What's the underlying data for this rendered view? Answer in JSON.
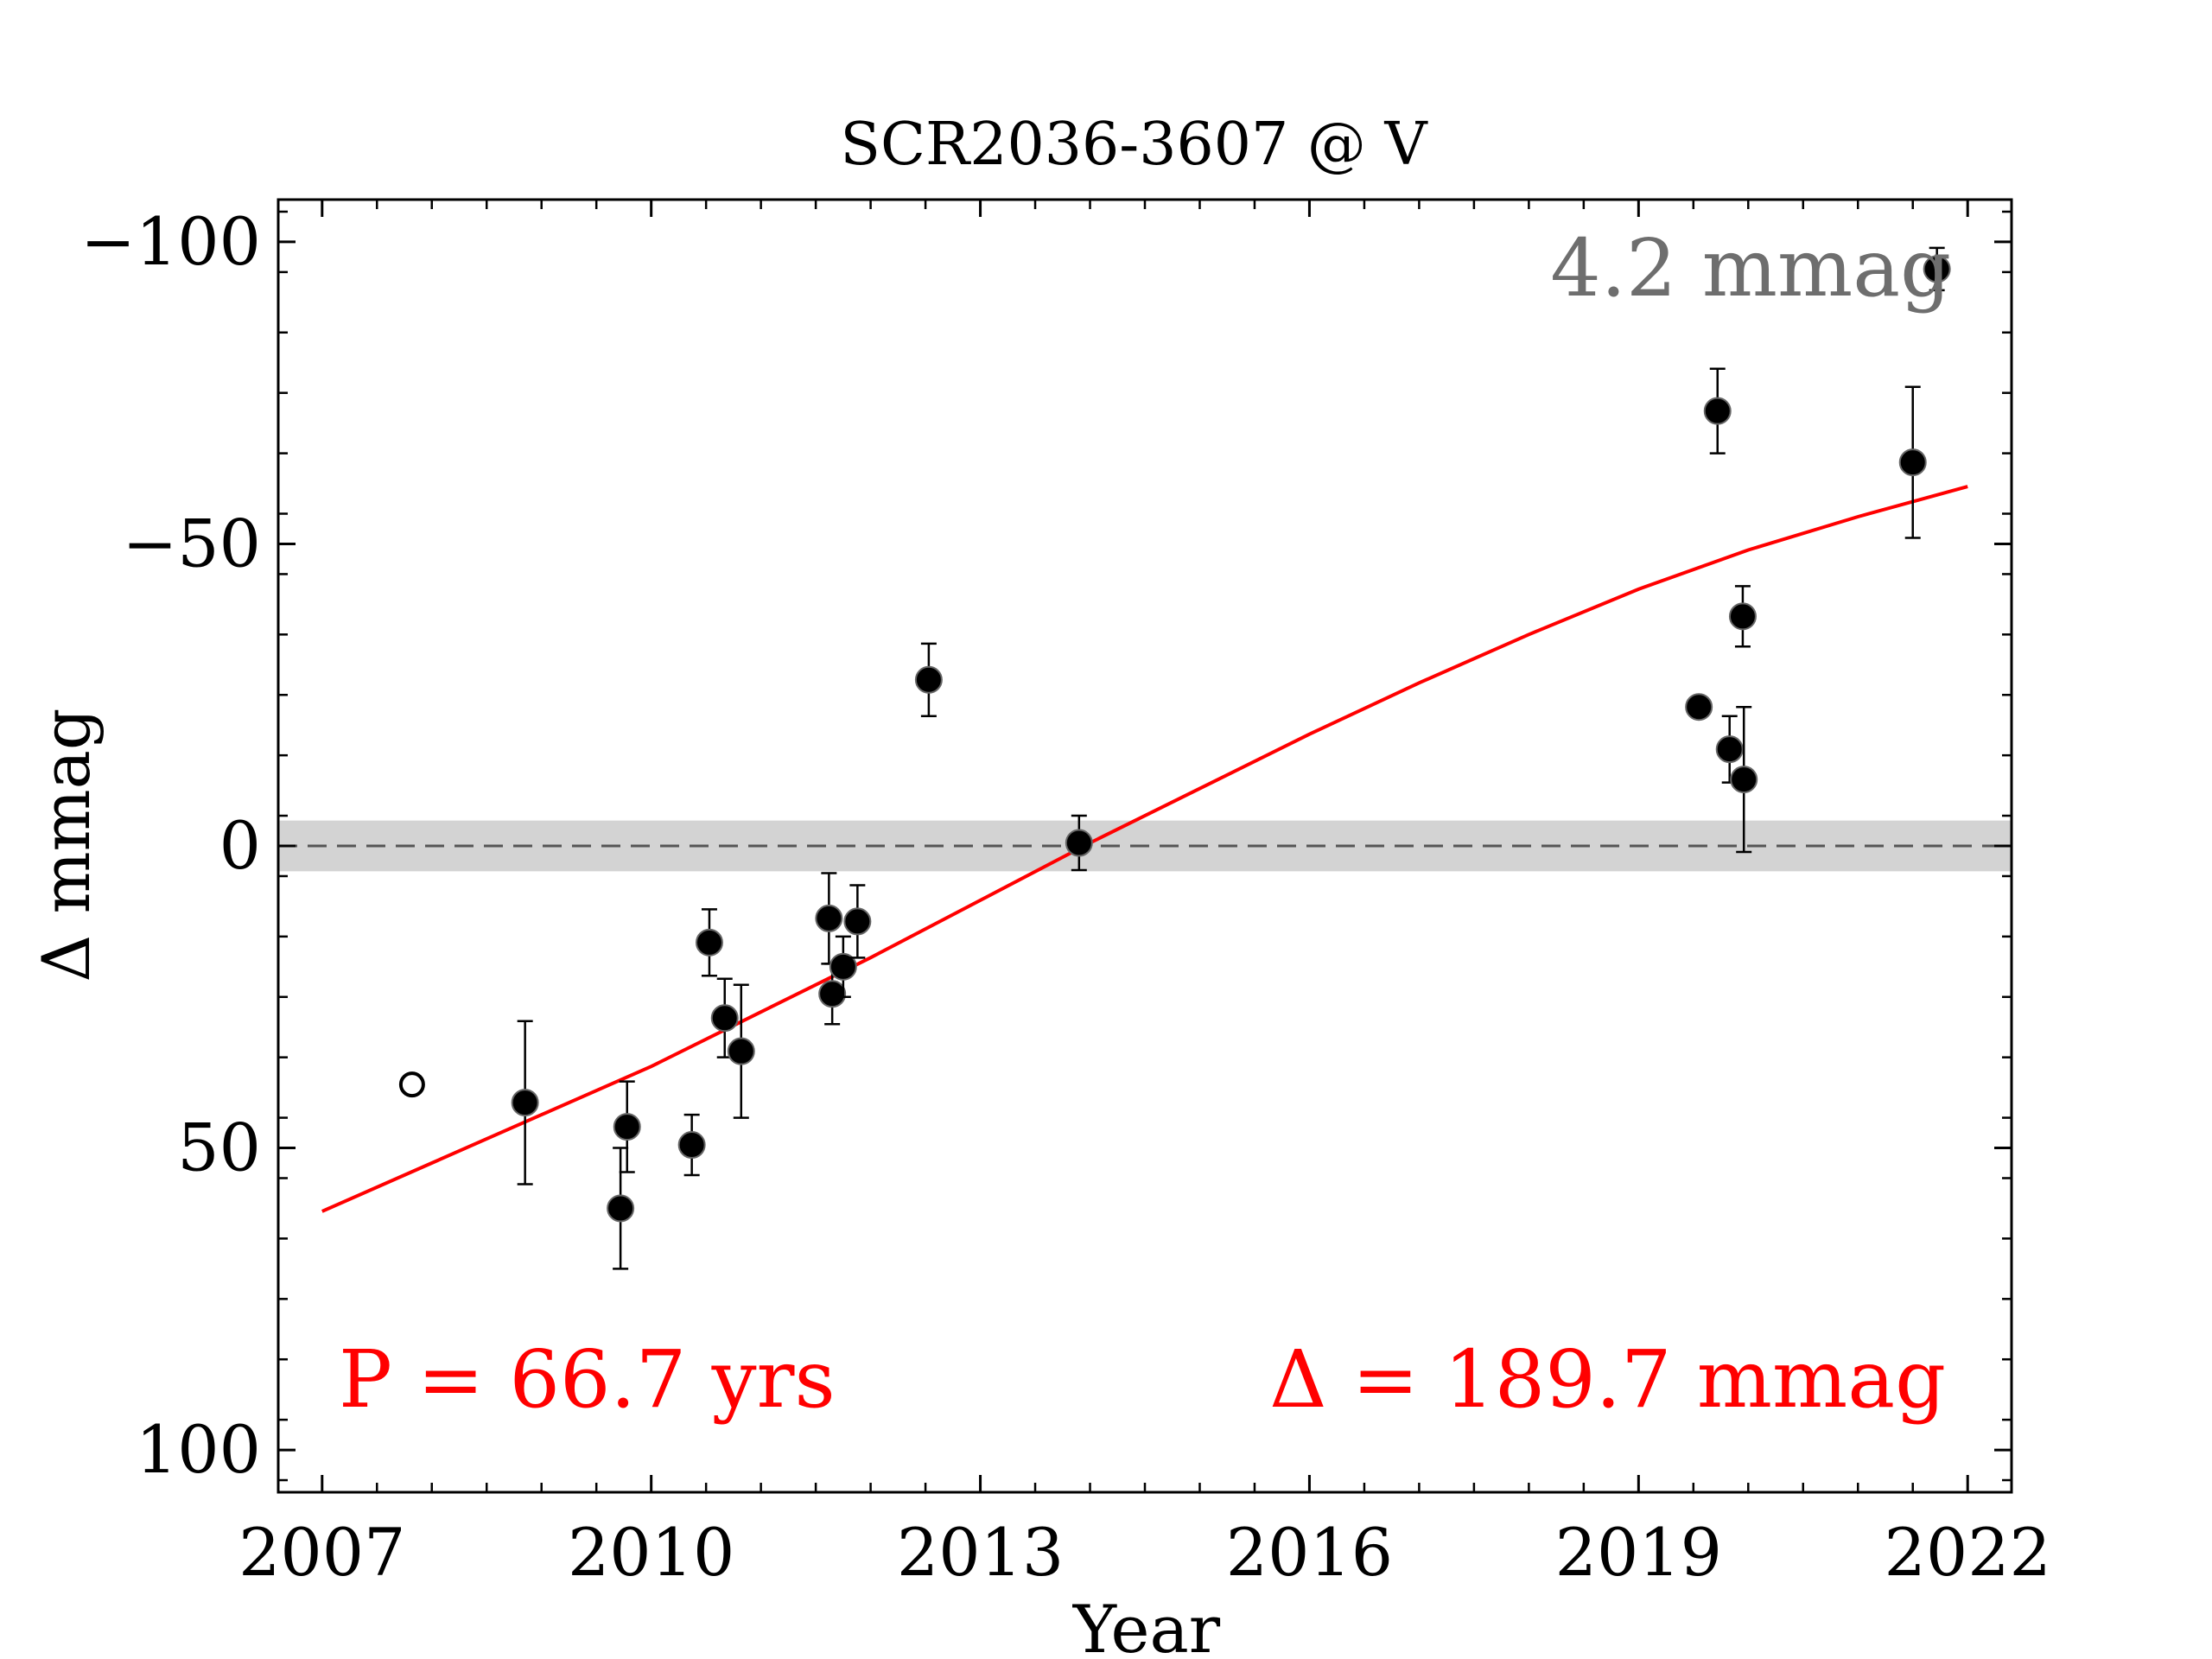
{
  "chart_data": {
    "type": "scatter",
    "title": "SCR2036-3607 @ V",
    "xlabel": "Year",
    "ylabel": "Δ  mmag",
    "xlim": [
      2006.6,
      2022.4
    ],
    "ylim": [
      107,
      -107
    ],
    "y_inverted": true,
    "x_ticks": [
      2007,
      2010,
      2013,
      2016,
      2019,
      2022
    ],
    "x_tick_labels": [
      "2007",
      "2010",
      "2013",
      "2016",
      "2019",
      "2022"
    ],
    "y_ticks": [
      -100,
      -50,
      0,
      50,
      100
    ],
    "y_tick_labels": [
      "−100",
      "−50",
      "0",
      "50",
      "100"
    ],
    "grid": false,
    "precision_band": {
      "value": 4.2,
      "label": "4.2 mmag",
      "color": "#d3d3d3",
      "label_color": "#6e6e6e"
    },
    "zero_line": {
      "y": 0,
      "style": "dashed",
      "color": "#555555"
    },
    "points": [
      {
        "x": 2008.85,
        "y": 42.5,
        "err": 13.5
      },
      {
        "x": 2009.72,
        "y": 60,
        "err": 10
      },
      {
        "x": 2009.78,
        "y": 46.5,
        "err": 7.5
      },
      {
        "x": 2010.37,
        "y": 49.5,
        "err": 5
      },
      {
        "x": 2010.53,
        "y": 16,
        "err": 5.5
      },
      {
        "x": 2010.67,
        "y": 28.5,
        "err": 6.5
      },
      {
        "x": 2010.82,
        "y": 34,
        "err": 11
      },
      {
        "x": 2011.62,
        "y": 12,
        "err": 7.5
      },
      {
        "x": 2011.65,
        "y": 24.5,
        "err": 5
      },
      {
        "x": 2011.75,
        "y": 20,
        "err": 5
      },
      {
        "x": 2011.88,
        "y": 12.5,
        "err": 6
      },
      {
        "x": 2012.53,
        "y": -27.5,
        "err": 6
      },
      {
        "x": 2013.9,
        "y": -0.5,
        "err": 4.5
      },
      {
        "x": 2019.55,
        "y": -23,
        "err": 0
      },
      {
        "x": 2019.72,
        "y": -72,
        "err": 7
      },
      {
        "x": 2019.83,
        "y": -16,
        "err": 5.5
      },
      {
        "x": 2019.95,
        "y": -38,
        "err": 5
      },
      {
        "x": 2019.96,
        "y": -11,
        "err": 12
      },
      {
        "x": 2021.5,
        "y": -63.5,
        "err": 12.5
      },
      {
        "x": 2021.72,
        "y": -95.5,
        "err": 3.5
      }
    ],
    "open_points": [
      {
        "x": 2007.82,
        "y": 39.5
      }
    ],
    "fit": {
      "color": "#ff0000",
      "x": [
        2007,
        2008,
        2009,
        2010,
        2011,
        2012,
        2013,
        2014,
        2015,
        2016,
        2017,
        2018,
        2019,
        2020,
        2021,
        2022
      ],
      "y": [
        60.5,
        52.5,
        44.5,
        36.5,
        27.5,
        18.5,
        9,
        -0.5,
        -9.5,
        -18.5,
        -27,
        -35,
        -42.5,
        -49,
        -54.5,
        -59.5
      ]
    },
    "annotations": {
      "period": "P = 66.7 yrs",
      "amplitude": "Δ = 189.7 mmag",
      "color": "#ff0000"
    },
    "marker_color": "#000000"
  }
}
